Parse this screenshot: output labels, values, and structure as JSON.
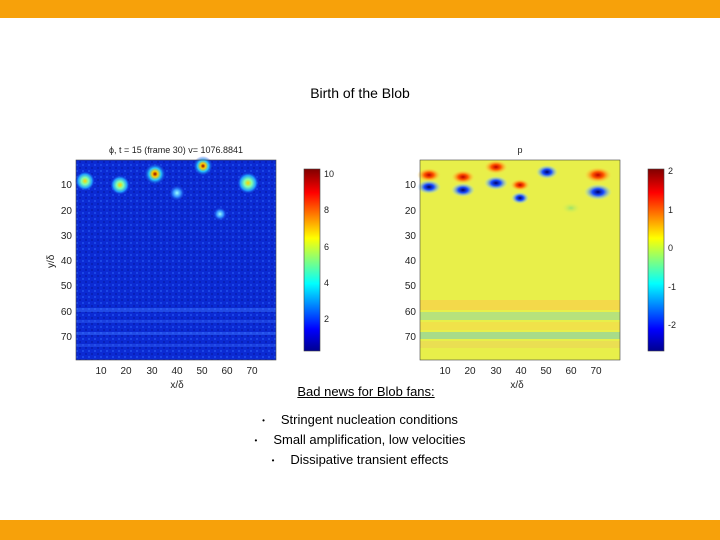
{
  "slide": {
    "title": "Birth of the Blob",
    "subhead": "Bad news for Blob fans:",
    "bullets": [
      "Stringent nucleation conditions",
      "Small amplification, low velocities",
      "Dissipative transient effects"
    ],
    "accent_color": "#f7a10a"
  },
  "left_plot": {
    "title": "ϕ, t = 15 (frame 30) v= 1076.8841",
    "xlabel": "x/δ",
    "ylabel": "y/δ",
    "xticks": [
      "10",
      "20",
      "30",
      "40",
      "50",
      "60",
      "70"
    ],
    "yticks": [
      "10",
      "20",
      "30",
      "40",
      "50",
      "60",
      "70"
    ],
    "colorbar_ticks": [
      "10",
      "8",
      "6",
      "4",
      "2"
    ]
  },
  "right_plot": {
    "title": "p",
    "xlabel": "x/δ",
    "yticks": [
      "10",
      "20",
      "30",
      "40",
      "50",
      "60",
      "70"
    ],
    "xticks": [
      "10",
      "20",
      "30",
      "40",
      "50",
      "60",
      "70"
    ],
    "colorbar_ticks": [
      "2",
      "1",
      "0",
      "-1",
      "-2"
    ]
  }
}
